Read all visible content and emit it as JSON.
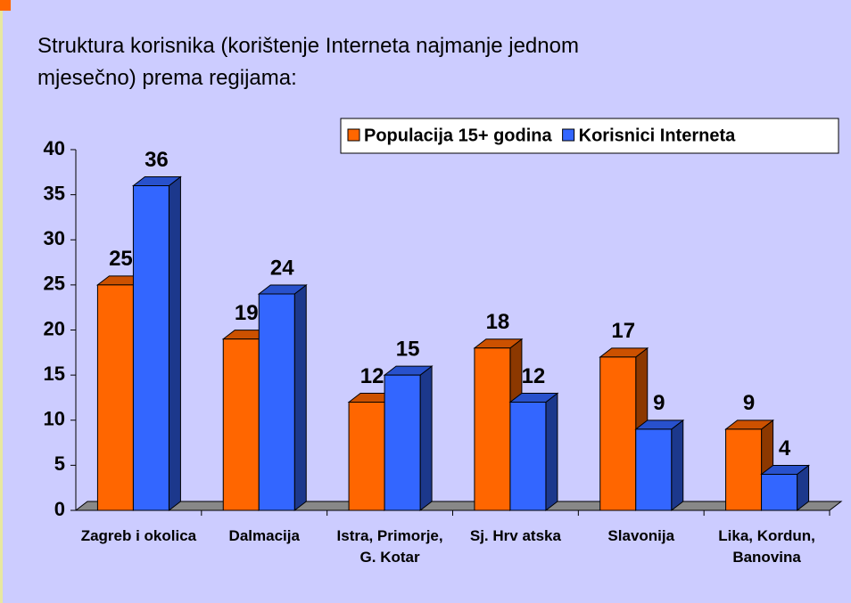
{
  "chart_data": {
    "type": "bar",
    "title": [
      "Struktura korisnika (korištenje Interneta najmanje jednom",
      "mjesečno) prema regijama:"
    ],
    "categories": [
      "Zagreb i okolica",
      "Dalmacija",
      "Istra, Primorje, G. Kotar",
      "Sj. Hrv atska",
      "Slavonija",
      "Lika, Kordun, Banovina"
    ],
    "series": [
      {
        "name": "Populacija 15+ godina",
        "color": "#ff6600",
        "values": [
          25,
          19,
          12,
          18,
          17,
          9
        ]
      },
      {
        "name": "Korisnici Interneta",
        "color": "#3366ff",
        "values": [
          36,
          24,
          15,
          12,
          9,
          4
        ]
      }
    ],
    "ylim": [
      0,
      40
    ],
    "yticks": [
      0,
      5,
      10,
      15,
      20,
      25,
      30,
      35,
      40
    ],
    "legend": "top-right"
  }
}
